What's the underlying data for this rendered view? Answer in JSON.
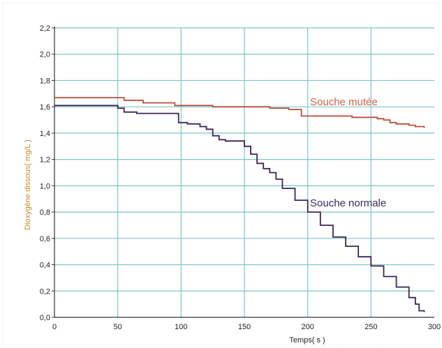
{
  "chart_data": {
    "type": "line",
    "title": "",
    "xlabel": "Temps( s )",
    "ylabel": "Dioxygène dissous( mg/L )",
    "xlim": [
      0,
      300
    ],
    "ylim": [
      0,
      2.2
    ],
    "x_ticks": [
      "0",
      "50",
      "100",
      "150",
      "200",
      "250",
      "300"
    ],
    "y_ticks": [
      "0,0",
      "0,2",
      "0,4",
      "0,6",
      "0,8",
      "1,0",
      "1,2",
      "1,4",
      "1,6",
      "1,8",
      "2,0",
      "2,2"
    ],
    "grid": true,
    "legend": "none",
    "series": [
      {
        "name": "Souche mutée",
        "color": "#b4503a",
        "x": [
          0,
          50,
          55,
          65,
          70,
          90,
          95,
          120,
          125,
          145,
          160,
          170,
          180,
          185,
          195,
          225,
          235,
          250,
          255,
          260,
          265,
          270,
          280,
          285,
          292
        ],
        "y": [
          1.67,
          1.67,
          1.65,
          1.65,
          1.63,
          1.63,
          1.61,
          1.61,
          1.6,
          1.6,
          1.6,
          1.59,
          1.59,
          1.58,
          1.53,
          1.53,
          1.52,
          1.52,
          1.51,
          1.5,
          1.48,
          1.47,
          1.46,
          1.45,
          1.44
        ]
      },
      {
        "name": "Souche normale",
        "color": "#3a2555",
        "x": [
          0,
          30,
          50,
          55,
          65,
          90,
          98,
          105,
          115,
          120,
          125,
          130,
          135,
          140,
          145,
          150,
          155,
          160,
          165,
          170,
          175,
          180,
          190,
          200,
          210,
          220,
          230,
          240,
          250,
          260,
          270,
          280,
          285,
          288,
          292
        ],
        "y": [
          1.61,
          1.61,
          1.59,
          1.56,
          1.55,
          1.55,
          1.48,
          1.47,
          1.45,
          1.43,
          1.38,
          1.35,
          1.34,
          1.34,
          1.34,
          1.3,
          1.24,
          1.17,
          1.13,
          1.1,
          1.05,
          0.98,
          0.89,
          0.8,
          0.7,
          0.61,
          0.54,
          0.46,
          0.39,
          0.31,
          0.23,
          0.15,
          0.1,
          0.05,
          0.04
        ]
      }
    ]
  }
}
